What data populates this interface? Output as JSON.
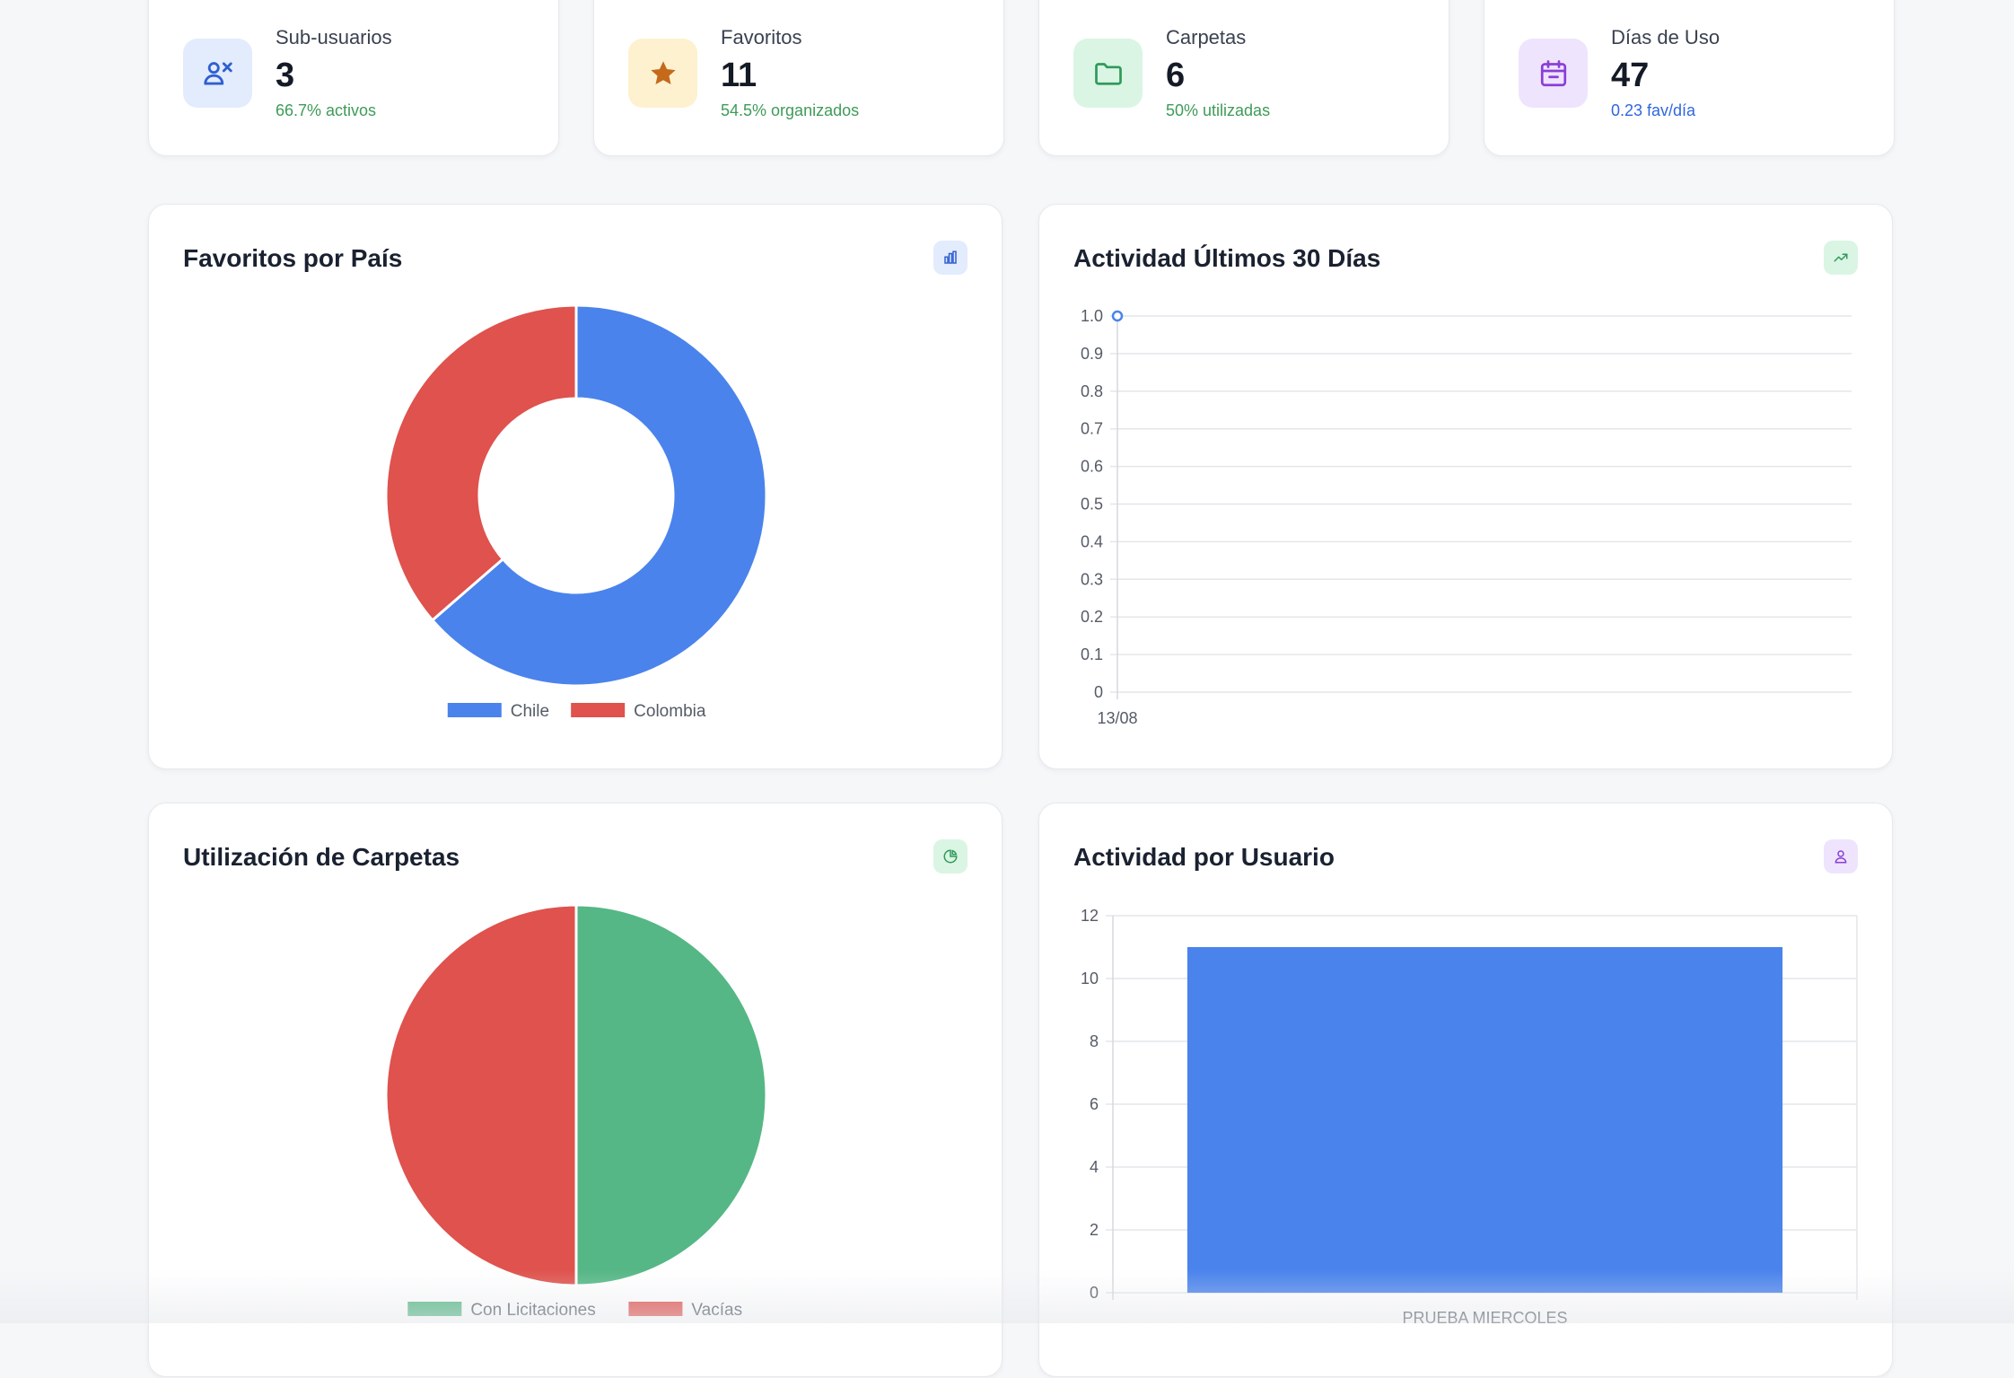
{
  "stats": [
    {
      "title": "Sub-usuarios",
      "value": "3",
      "sub": "66.7% activos",
      "icon": "users-icon",
      "icon_bg": "#e3ecfd",
      "icon_color": "#2f5fd0",
      "sub_color": "#3f9b58"
    },
    {
      "title": "Favoritos",
      "value": "11",
      "sub": "54.5% organizados",
      "icon": "star-icon",
      "icon_bg": "#fdf1cf",
      "icon_color": "#c46a1a",
      "sub_color": "#3f9b58"
    },
    {
      "title": "Carpetas",
      "value": "6",
      "sub": "50% utilizadas",
      "icon": "folder-icon",
      "icon_bg": "#daf5e4",
      "icon_color": "#2f9a5a",
      "sub_color": "#3f9b58"
    },
    {
      "title": "Días de Uso",
      "value": "47",
      "sub": "0.23 fav/día",
      "icon": "calendar-icon",
      "icon_bg": "#efe4fd",
      "icon_color": "#8a3fd6",
      "sub_color": "#2f66e0"
    }
  ],
  "panels": {
    "country": {
      "title": "Favoritos por País",
      "icon": "bar-chart-icon",
      "badge_bg": "#e3ecfd",
      "badge_color": "#2f5fd0"
    },
    "activity": {
      "title": "Actividad Últimos 30 Días",
      "icon": "trending-up-icon",
      "badge_bg": "#daf5e4",
      "badge_color": "#2f9a5a"
    },
    "folders": {
      "title": "Utilización de Carpetas",
      "icon": "pie-chart-icon",
      "badge_bg": "#daf5e4",
      "badge_color": "#2f9a5a"
    },
    "users": {
      "title": "Actividad por Usuario",
      "icon": "user-icon",
      "badge_bg": "#efe4fd",
      "badge_color": "#8a3fd6"
    }
  },
  "chart_data": [
    {
      "id": "country",
      "type": "pie",
      "variant": "doughnut",
      "categories": [
        "Chile",
        "Colombia"
      ],
      "values": [
        7,
        4
      ],
      "colors": [
        "#4a83ec",
        "#df524d"
      ],
      "legend": "bottom"
    },
    {
      "id": "activity",
      "type": "line",
      "x": [
        "13/08"
      ],
      "series": [
        {
          "values": [
            1.0
          ],
          "color": "#4a83ec"
        }
      ],
      "ylim": [
        0,
        1.0
      ],
      "yticks": [
        0,
        0.1,
        0.2,
        0.3,
        0.4,
        0.5,
        0.6,
        0.7,
        0.8,
        0.9,
        1.0
      ],
      "ytick_labels": [
        "0",
        "0.1",
        "0.2",
        "0.3",
        "0.4",
        "0.5",
        "0.6",
        "0.7",
        "0.8",
        "0.9",
        "1.0"
      ],
      "grid": true
    },
    {
      "id": "folders",
      "type": "pie",
      "categories": [
        "Con Licitaciones",
        "Vacías"
      ],
      "values": [
        3,
        3
      ],
      "colors": [
        "#55b785",
        "#df524d"
      ],
      "legend": "bottom"
    },
    {
      "id": "users",
      "type": "bar",
      "categories": [
        "PRUEBA MIERCOLES"
      ],
      "values": [
        11
      ],
      "color": "#4a83ec",
      "ylim": [
        0,
        12
      ],
      "yticks": [
        0,
        2,
        4,
        6,
        8,
        10,
        12
      ],
      "grid": true
    }
  ]
}
